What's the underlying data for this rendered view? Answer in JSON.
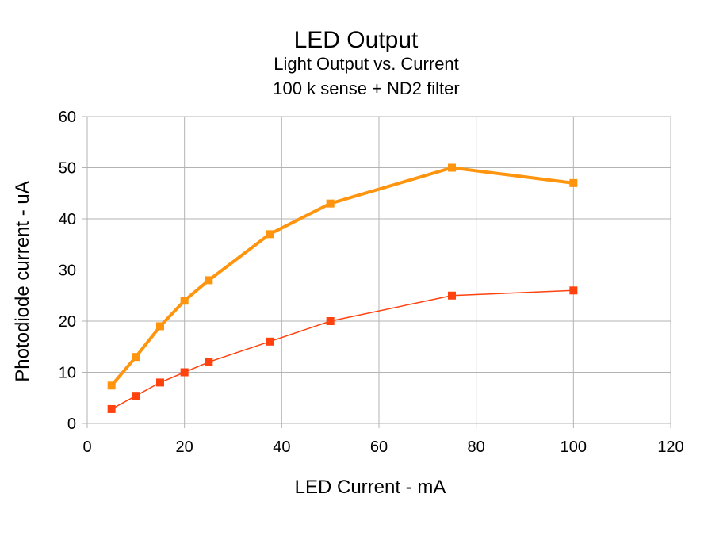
{
  "chart_data": {
    "type": "line",
    "title": "LED Output",
    "subtitle": [
      "Light Output vs. Current",
      "100 k sense + ND2 filter"
    ],
    "xlabel": "LED Current - mA",
    "ylabel": "Photodiode current - uA",
    "xlim": [
      0,
      120
    ],
    "ylim": [
      0,
      60
    ],
    "xticks": [
      0,
      20,
      40,
      60,
      80,
      100,
      120
    ],
    "yticks": [
      0,
      10,
      20,
      30,
      40,
      50,
      60
    ],
    "grid": true,
    "legend": "none",
    "series": [
      {
        "color": "#ff950e",
        "x": [
          5,
          10,
          15,
          20,
          25,
          37.5,
          50,
          75,
          100
        ],
        "values": [
          7.4,
          13,
          19,
          24,
          28,
          37,
          43,
          50,
          47
        ]
      },
      {
        "color": "#ff420e",
        "x": [
          5,
          10,
          15,
          20,
          25,
          37.5,
          50,
          75,
          100
        ],
        "values": [
          2.8,
          5.4,
          8,
          10,
          12,
          16,
          20,
          25,
          26
        ]
      }
    ]
  }
}
